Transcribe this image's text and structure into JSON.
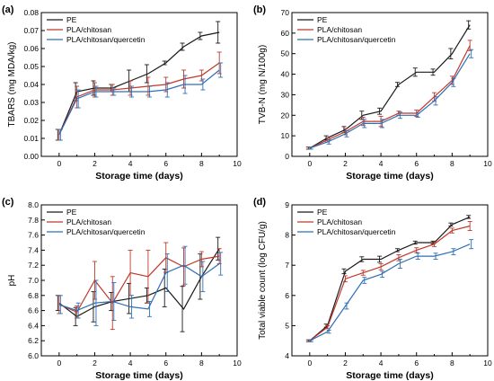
{
  "series_colors": {
    "PE": "#1a1a1a",
    "PLA/chitosan": "#c0392b",
    "PLA/chitosan/quercetin": "#2e6fb5"
  },
  "chart_data": [
    {
      "type": "line",
      "panel_label": "(a)",
      "xlabel": "Storage time (days)",
      "ylabel": "TBARS (mg MDA/kg)",
      "xlim": [
        -1,
        10
      ],
      "ylim": [
        0.0,
        0.08
      ],
      "xticks": [
        "0",
        "2",
        "4",
        "6",
        "8",
        "10"
      ],
      "xtick_values": [
        0,
        2,
        4,
        6,
        8,
        10
      ],
      "yticks": [
        "0.00",
        "0.01",
        "0.02",
        "0.03",
        "0.04",
        "0.05",
        "0.06",
        "0.07",
        "0.08"
      ],
      "ytick_values": [
        0.0,
        0.01,
        0.02,
        0.03,
        0.04,
        0.05,
        0.06,
        0.07,
        0.08
      ],
      "legend_position": "top-left",
      "x": [
        0,
        1,
        2,
        3,
        4,
        5,
        6,
        7,
        8,
        9
      ],
      "series": [
        {
          "name": "PE",
          "values": [
            0.012,
            0.036,
            0.038,
            0.038,
            0.042,
            0.046,
            0.052,
            0.061,
            0.067,
            0.069
          ],
          "errors": [
            0.003,
            0.005,
            0.004,
            0.002,
            0.006,
            0.005,
            0.001,
            0.002,
            0.002,
            0.006
          ]
        },
        {
          "name": "PLA/chitosan",
          "values": [
            0.012,
            0.033,
            0.037,
            0.037,
            0.038,
            0.039,
            0.04,
            0.043,
            0.045,
            0.052
          ],
          "errors": [
            0.003,
            0.006,
            0.004,
            0.003,
            0.004,
            0.005,
            0.004,
            0.005,
            0.003,
            0.006
          ]
        },
        {
          "name": "PLA/chitosan/quercetin",
          "values": [
            0.012,
            0.032,
            0.036,
            0.036,
            0.036,
            0.036,
            0.037,
            0.04,
            0.04,
            0.048
          ],
          "errors": [
            0.003,
            0.005,
            0.003,
            0.002,
            0.003,
            0.003,
            0.004,
            0.005,
            0.003,
            0.004
          ]
        }
      ]
    },
    {
      "type": "line",
      "panel_label": "(b)",
      "xlabel": "Storage time (days)",
      "ylabel": "TVB-N (mg N/100g)",
      "xlim": [
        -1,
        10
      ],
      "ylim": [
        0,
        70
      ],
      "xticks": [
        "0",
        "2",
        "4",
        "6",
        "8",
        "10"
      ],
      "xtick_values": [
        0,
        2,
        4,
        6,
        8,
        10
      ],
      "yticks": [
        "0",
        "10",
        "20",
        "30",
        "40",
        "50",
        "60",
        "70"
      ],
      "ytick_values": [
        0,
        10,
        20,
        30,
        40,
        50,
        60,
        70
      ],
      "legend_position": "top-left",
      "x": [
        0,
        1,
        2,
        3,
        4,
        5,
        6,
        7,
        8,
        9
      ],
      "series": [
        {
          "name": "PE",
          "values": [
            4,
            9,
            13,
            20,
            22,
            35,
            41,
            41,
            50,
            64
          ],
          "errors": [
            0.5,
            1,
            1.5,
            2,
            1.5,
            1,
            2,
            1.5,
            2.5,
            2
          ]
        },
        {
          "name": "PLA/chitosan",
          "values": [
            4,
            8,
            12,
            17,
            17,
            21,
            21,
            29,
            37,
            54
          ],
          "errors": [
            0.5,
            1,
            1.5,
            2,
            2.5,
            1,
            1.5,
            2,
            2,
            2.5
          ]
        },
        {
          "name": "PLA/chitosan/quercetin",
          "values": [
            4,
            7,
            11,
            16,
            16,
            20,
            20,
            27,
            36,
            50
          ],
          "errors": [
            0.5,
            1,
            1.5,
            2,
            2,
            1.5,
            1,
            2,
            2,
            2
          ]
        }
      ]
    },
    {
      "type": "line",
      "panel_label": "(c)",
      "xlabel": "Storage time (days)",
      "ylabel": "pH",
      "xlim": [
        -1,
        10
      ],
      "ylim": [
        6.0,
        8.0
      ],
      "xticks": [
        "0",
        "2",
        "4",
        "6",
        "8",
        "10"
      ],
      "xtick_values": [
        0,
        2,
        4,
        6,
        8,
        10
      ],
      "yticks": [
        "6.0",
        "6.2",
        "6.4",
        "6.6",
        "6.8",
        "7.0",
        "7.2",
        "7.4",
        "7.6",
        "7.8",
        "8.0"
      ],
      "ytick_values": [
        6.0,
        6.2,
        6.4,
        6.6,
        6.8,
        7.0,
        7.2,
        7.4,
        7.6,
        7.8,
        8.0
      ],
      "legend_position": "top-left",
      "x": [
        0,
        1,
        2,
        3,
        4,
        5,
        6,
        7,
        8,
        9
      ],
      "series": [
        {
          "name": "PE",
          "values": [
            6.7,
            6.52,
            6.65,
            6.72,
            6.76,
            6.8,
            6.9,
            6.62,
            7.05,
            7.42
          ],
          "errors": [
            0.1,
            0.12,
            0.2,
            0.12,
            0.2,
            0.1,
            0.25,
            0.3,
            0.3,
            0.15
          ]
        },
        {
          "name": "PLA/chitosan",
          "values": [
            6.68,
            6.58,
            7.0,
            6.7,
            7.1,
            7.05,
            7.3,
            7.18,
            7.28,
            7.32
          ],
          "errors": [
            0.12,
            0.08,
            0.25,
            0.35,
            0.3,
            0.35,
            0.2,
            0.25,
            0.1,
            0.1
          ]
        },
        {
          "name": "PLA/chitosan/quercetin",
          "values": [
            6.68,
            6.6,
            6.7,
            6.72,
            6.65,
            6.62,
            7.1,
            7.2,
            7.05,
            7.22
          ],
          "errors": [
            0.12,
            0.1,
            0.3,
            0.25,
            0.15,
            0.1,
            0.25,
            0.25,
            0.2,
            0.15
          ]
        }
      ]
    },
    {
      "type": "line",
      "panel_label": "(d)",
      "xlabel": "Storage time (days)",
      "ylabel": "Total viable count (log CFU/g)",
      "xlim": [
        -1,
        10
      ],
      "ylim": [
        4,
        9
      ],
      "xticks": [
        "0",
        "2",
        "4",
        "6",
        "8",
        "10"
      ],
      "xtick_values": [
        0,
        2,
        4,
        6,
        8,
        10
      ],
      "yticks": [
        "4",
        "5",
        "6",
        "7",
        "8",
        "9"
      ],
      "ytick_values": [
        4,
        5,
        6,
        7,
        8,
        9
      ],
      "legend_position": "top-left",
      "x": [
        0,
        1,
        2,
        3,
        4,
        5,
        6,
        7,
        8,
        9
      ],
      "series": [
        {
          "name": "PE",
          "values": [
            4.5,
            5.0,
            6.8,
            7.2,
            7.2,
            7.5,
            7.75,
            7.75,
            8.35,
            8.6
          ],
          "errors": [
            0.03,
            0.05,
            0.08,
            0.08,
            0.1,
            0.05,
            0.05,
            0.05,
            0.05,
            0.05
          ]
        },
        {
          "name": "PLA/chitosan",
          "values": [
            4.5,
            4.95,
            6.55,
            6.75,
            6.95,
            7.25,
            7.5,
            7.7,
            8.15,
            8.3
          ],
          "errors": [
            0.03,
            0.05,
            0.1,
            0.08,
            0.1,
            0.1,
            0.08,
            0.08,
            0.08,
            0.15
          ]
        },
        {
          "name": "PLA/chitosan/quercetin",
          "values": [
            4.5,
            4.8,
            5.65,
            6.5,
            6.7,
            7.05,
            7.3,
            7.3,
            7.45,
            7.7
          ],
          "errors": [
            0.03,
            0.05,
            0.1,
            0.1,
            0.1,
            0.15,
            0.1,
            0.1,
            0.1,
            0.15
          ]
        }
      ]
    }
  ]
}
